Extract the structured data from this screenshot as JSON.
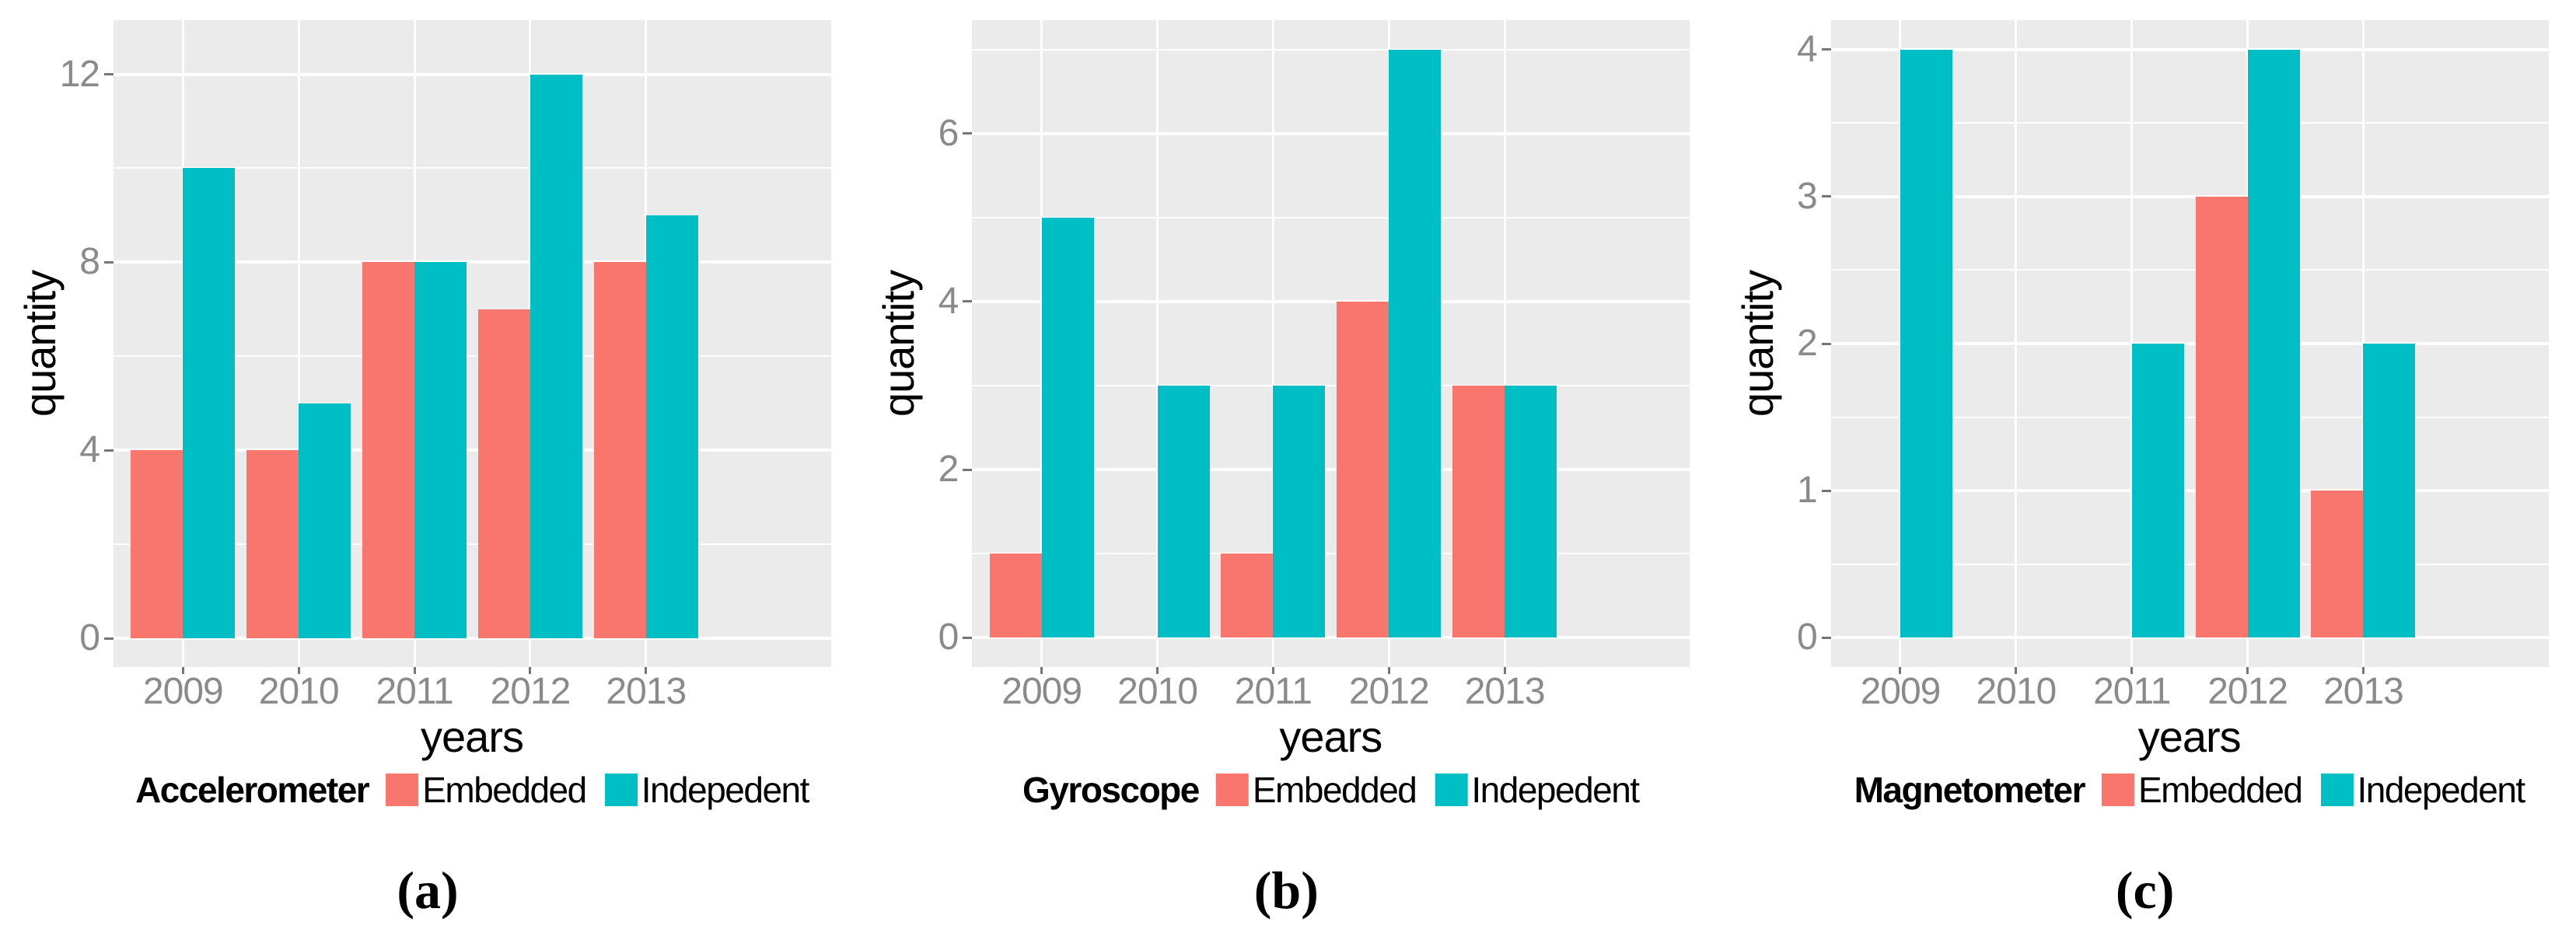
{
  "figure": {
    "background": "#ffffff",
    "caption_labels": [
      "(a)",
      "(b)",
      "(c)"
    ]
  },
  "style": {
    "panel_bg": "#EBEBEB",
    "grid_color": "#FFFFFF",
    "tick_mark_color": "#767676",
    "tick_label_color": "#8a8a8a",
    "text_color": "#000000",
    "embedded_color": "#F8766D",
    "independent_color": "#00BFC4"
  },
  "chart_data": [
    {
      "type": "bar",
      "caption": "(a)",
      "legend_title": "Accelerometer",
      "legend_position": "bottom",
      "grid": true,
      "xlabel": "years",
      "ylabel": "quantity",
      "categories": [
        "2009",
        "2010",
        "2011",
        "2012",
        "2013"
      ],
      "series": [
        {
          "name": "Embedded",
          "color": "#F8766D",
          "values": [
            4,
            4,
            8,
            7,
            8
          ]
        },
        {
          "name": "Indepedent",
          "color": "#00BFC4",
          "values": [
            10,
            5,
            8,
            12,
            9
          ]
        }
      ],
      "yticks": [
        0,
        4,
        8,
        12
      ],
      "minor_ticks": [
        2,
        6,
        10
      ],
      "ylim": [
        -0.61,
        13.15
      ]
    },
    {
      "type": "bar",
      "caption": "(b)",
      "legend_title": "Gyroscope",
      "legend_position": "bottom",
      "grid": true,
      "xlabel": "years",
      "ylabel": "quantity",
      "categories": [
        "2009",
        "2010",
        "2011",
        "2012",
        "2013"
      ],
      "series": [
        {
          "name": "Embedded",
          "color": "#F8766D",
          "values": [
            1,
            0,
            1,
            4,
            3
          ]
        },
        {
          "name": "Indepedent",
          "color": "#00BFC4",
          "values": [
            5,
            3,
            3,
            7,
            3
          ]
        }
      ],
      "yticks": [
        0,
        2,
        4,
        6
      ],
      "minor_ticks": [
        1,
        3,
        5,
        7
      ],
      "ylim": [
        -0.35,
        7.35
      ]
    },
    {
      "type": "bar",
      "caption": "(c)",
      "legend_title": "Magnetometer",
      "legend_position": "bottom",
      "grid": true,
      "xlabel": "years",
      "ylabel": "quantity",
      "categories": [
        "2009",
        "2010",
        "2011",
        "2012",
        "2013"
      ],
      "series": [
        {
          "name": "Embedded",
          "color": "#F8766D",
          "values": [
            0,
            0,
            0,
            3,
            1
          ]
        },
        {
          "name": "Indepedent",
          "color": "#00BFC4",
          "values": [
            4,
            0,
            2,
            4,
            2
          ]
        }
      ],
      "yticks": [
        0,
        1,
        2,
        3,
        4
      ],
      "minor_ticks": [
        0.5,
        1.5,
        2.5,
        3.5
      ],
      "ylim": [
        -0.2,
        4.2
      ]
    }
  ]
}
